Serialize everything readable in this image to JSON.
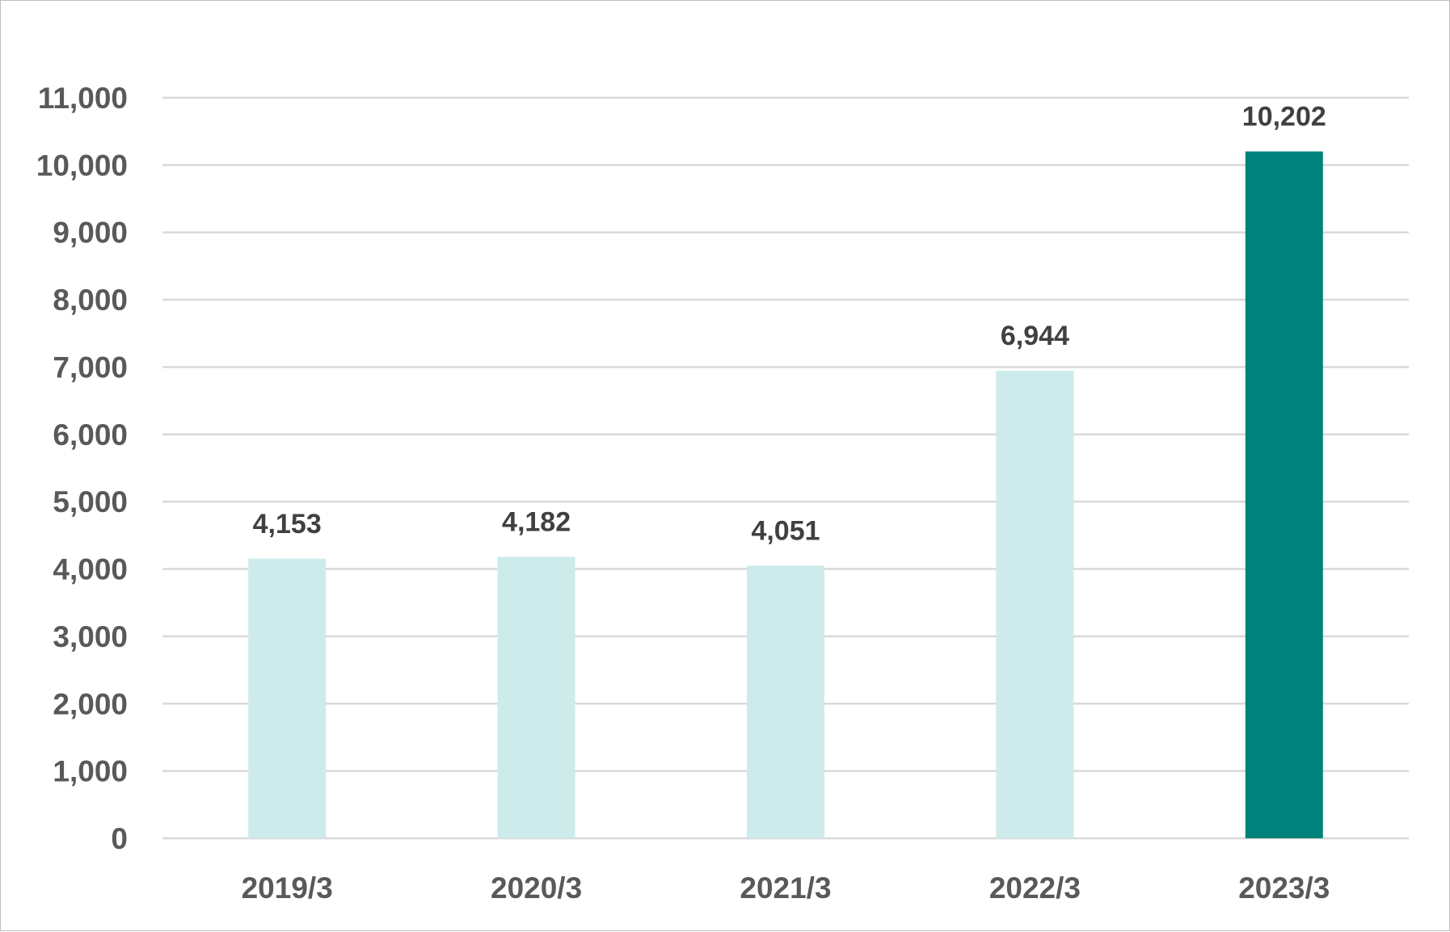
{
  "chart_data": {
    "type": "bar",
    "categories": [
      "2019/3",
      "2020/3",
      "2021/3",
      "2022/3",
      "2023/3"
    ],
    "values": [
      4153,
      4182,
      4051,
      6944,
      10202
    ],
    "data_labels": [
      "4,153",
      "4,182",
      "4,051",
      "6,944",
      "10,202"
    ],
    "title": "",
    "xlabel": "",
    "ylabel": "",
    "ylim": [
      0,
      11000
    ],
    "y_ticks": [
      {
        "value": 0,
        "label": "0"
      },
      {
        "value": 1000,
        "label": "1,000"
      },
      {
        "value": 2000,
        "label": "2,000"
      },
      {
        "value": 3000,
        "label": "3,000"
      },
      {
        "value": 4000,
        "label": "4,000"
      },
      {
        "value": 5000,
        "label": "5,000"
      },
      {
        "value": 6000,
        "label": "6,000"
      },
      {
        "value": 7000,
        "label": "7,000"
      },
      {
        "value": 8000,
        "label": "8,000"
      },
      {
        "value": 9000,
        "label": "9,000"
      },
      {
        "value": 10000,
        "label": "10,000"
      },
      {
        "value": 11000,
        "label": "11,000"
      }
    ],
    "grid": true,
    "legend": "none",
    "colors": {
      "bar": "#cdebea",
      "highlight_bar": "#00827c",
      "gridline": "#d9d9d9",
      "tick_text": "#595959",
      "label_text": "#404040"
    },
    "highlight_index": 4
  }
}
